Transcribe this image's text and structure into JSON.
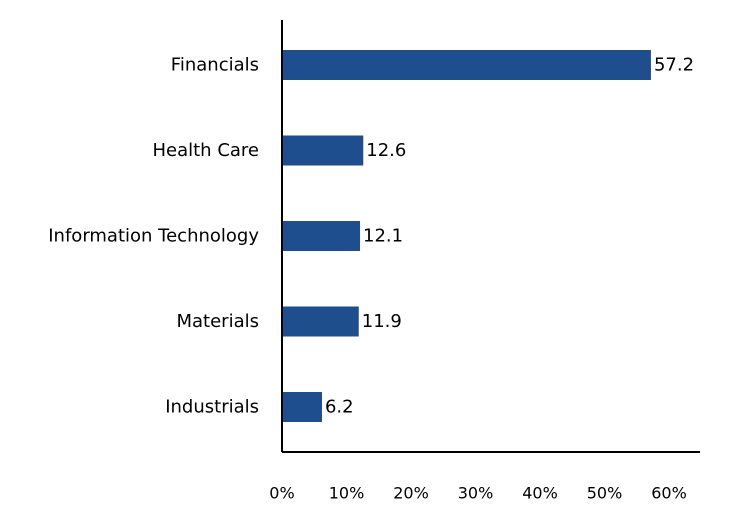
{
  "chart_data": {
    "type": "bar",
    "orientation": "horizontal",
    "title": "",
    "xlabel": "",
    "ylabel": "",
    "categories": [
      "Financials",
      "Health Care",
      "Information Technology",
      "Materials",
      "Industrials"
    ],
    "values": [
      57.2,
      12.6,
      12.1,
      11.9,
      6.2
    ],
    "value_labels": [
      "57.2",
      "12.6",
      "12.1",
      "11.9",
      "6.2"
    ],
    "xlim": [
      0,
      60
    ],
    "xticks": [
      0,
      10,
      20,
      30,
      40,
      50,
      60
    ],
    "xtick_labels": [
      "0%",
      "10%",
      "20%",
      "30%",
      "40%",
      "50%",
      "60%"
    ],
    "grid": false,
    "legend": "none",
    "bar_color": "#1f4e8f"
  }
}
